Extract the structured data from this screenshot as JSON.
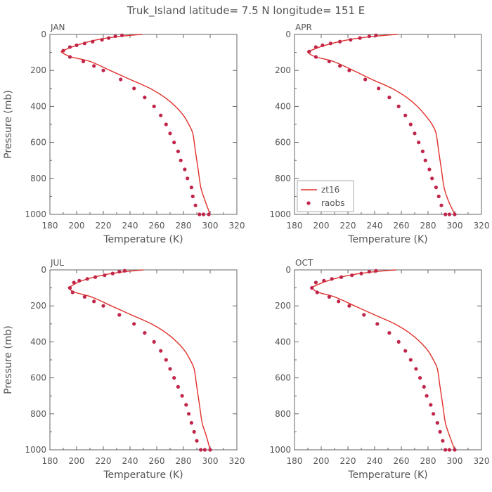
{
  "title": "Truk_Island  latitude= 7.5 N longitude= 151 E",
  "chart_data": [
    {
      "type": "line",
      "panel_label": "JAN",
      "xlabel": "Temperature (K)",
      "ylabel": "Pressure (mb)",
      "xlim": [
        180,
        320
      ],
      "ylim": [
        0,
        1000
      ],
      "y_inverted": true,
      "xticks": [
        180,
        200,
        220,
        240,
        260,
        280,
        300,
        320
      ],
      "yticks": [
        0,
        200,
        400,
        600,
        800,
        1000
      ],
      "legend": null,
      "series": [
        {
          "name": "zt16",
          "style": "line",
          "color": "#e0302b",
          "x": [
            249,
            233,
            215,
            200,
            190,
            189,
            196,
            210,
            225,
            240,
            255,
            266,
            274,
            280,
            284,
            287,
            289,
            291,
            293,
            296,
            300
          ],
          "y": [
            0,
            10,
            30,
            60,
            90,
            100,
            125,
            150,
            200,
            250,
            300,
            350,
            400,
            450,
            500,
            550,
            650,
            750,
            850,
            920,
            1000
          ]
        },
        {
          "name": "raobs",
          "style": "markers",
          "color": "#c0254a",
          "x": [
            234,
            229,
            224,
            219,
            212,
            206,
            200,
            195,
            190,
            195,
            205,
            213,
            220,
            233,
            243,
            251,
            258,
            263,
            267,
            270,
            273,
            276,
            278,
            281,
            283,
            286,
            287,
            289,
            292,
            295,
            299
          ],
          "y": [
            5,
            10,
            20,
            30,
            40,
            50,
            60,
            70,
            90,
            125,
            150,
            175,
            200,
            250,
            300,
            350,
            400,
            450,
            500,
            550,
            600,
            650,
            700,
            750,
            800,
            850,
            900,
            950,
            1000,
            1000,
            1000
          ]
        }
      ]
    },
    {
      "type": "line",
      "panel_label": "APR",
      "xlabel": "Temperature (K)",
      "ylabel": "",
      "xlim": [
        180,
        320
      ],
      "ylim": [
        0,
        1000
      ],
      "y_inverted": true,
      "xticks": [
        180,
        200,
        220,
        240,
        260,
        280,
        300,
        320
      ],
      "yticks": [
        0,
        200,
        400,
        600,
        800,
        1000
      ],
      "legend": {
        "placement": "lower-left",
        "entries": [
          {
            "label": "zt16",
            "style": "line",
            "color": "#e0302b"
          },
          {
            "label": "raobs",
            "style": "marker",
            "color": "#c0254a"
          }
        ]
      },
      "series": [
        {
          "name": "zt16",
          "style": "line",
          "color": "#e0302b",
          "x": [
            257,
            240,
            220,
            203,
            192,
            190,
            196,
            209,
            224,
            238,
            253,
            264,
            272,
            278,
            283,
            286,
            288,
            290,
            292,
            295,
            300
          ],
          "y": [
            0,
            10,
            30,
            60,
            90,
            100,
            125,
            150,
            200,
            250,
            300,
            350,
            400,
            450,
            500,
            550,
            650,
            750,
            850,
            920,
            1000
          ]
        },
        {
          "name": "raobs",
          "style": "markers",
          "color": "#c0254a",
          "x": [
            241,
            236,
            229,
            222,
            214,
            207,
            201,
            196,
            191,
            196,
            206,
            214,
            221,
            233,
            243,
            251,
            258,
            263,
            267,
            270,
            273,
            276,
            278,
            281,
            283,
            286,
            288,
            290,
            293,
            296,
            300
          ],
          "y": [
            5,
            10,
            20,
            30,
            40,
            50,
            60,
            70,
            95,
            125,
            150,
            175,
            200,
            250,
            300,
            350,
            400,
            450,
            500,
            550,
            600,
            650,
            700,
            750,
            800,
            850,
            900,
            950,
            1000,
            1000,
            1000
          ]
        }
      ]
    },
    {
      "type": "line",
      "panel_label": "JUL",
      "xlabel": "Temperature (K)",
      "ylabel": "Pressure (mb)",
      "xlim": [
        180,
        320
      ],
      "ylim": [
        0,
        1000
      ],
      "y_inverted": true,
      "xticks": [
        180,
        200,
        220,
        240,
        260,
        280,
        300,
        320
      ],
      "yticks": [
        0,
        200,
        400,
        600,
        800,
        1000
      ],
      "legend": null,
      "series": [
        {
          "name": "zt16",
          "style": "line",
          "color": "#e0302b",
          "x": [
            250,
            236,
            219,
            204,
            196,
            194,
            199,
            211,
            226,
            241,
            256,
            267,
            275,
            281,
            285,
            288,
            290,
            292,
            294,
            297,
            300
          ],
          "y": [
            0,
            10,
            30,
            60,
            90,
            100,
            125,
            150,
            200,
            250,
            300,
            350,
            400,
            450,
            500,
            550,
            650,
            750,
            850,
            920,
            1000
          ]
        },
        {
          "name": "raobs",
          "style": "markers",
          "color": "#c0254a",
          "x": [
            236,
            232,
            227,
            221,
            214,
            208,
            202,
            198,
            195,
            197,
            206,
            213,
            220,
            232,
            243,
            251,
            258,
            263,
            267,
            270,
            273,
            276,
            279,
            282,
            284,
            286,
            288,
            290,
            293,
            296,
            300
          ],
          "y": [
            5,
            10,
            20,
            30,
            40,
            50,
            60,
            70,
            100,
            125,
            150,
            175,
            200,
            250,
            300,
            350,
            400,
            450,
            500,
            550,
            600,
            650,
            700,
            750,
            800,
            850,
            900,
            950,
            1000,
            1000,
            1000
          ]
        }
      ]
    },
    {
      "type": "line",
      "panel_label": "OCT",
      "xlabel": "Temperature (K)",
      "ylabel": "",
      "xlim": [
        180,
        320
      ],
      "ylim": [
        0,
        1000
      ],
      "y_inverted": true,
      "xticks": [
        180,
        200,
        220,
        240,
        260,
        280,
        300,
        320
      ],
      "yticks": [
        0,
        200,
        400,
        600,
        800,
        1000
      ],
      "legend": null,
      "series": [
        {
          "name": "zt16",
          "style": "line",
          "color": "#e0302b",
          "x": [
            256,
            240,
            221,
            205,
            195,
            193,
            198,
            210,
            225,
            240,
            255,
            266,
            274,
            280,
            284,
            287,
            289,
            291,
            293,
            296,
            300
          ],
          "y": [
            0,
            10,
            30,
            60,
            90,
            100,
            125,
            150,
            200,
            250,
            300,
            350,
            400,
            450,
            500,
            550,
            650,
            750,
            850,
            920,
            1000
          ]
        },
        {
          "name": "raobs",
          "style": "markers",
          "color": "#c0254a",
          "x": [
            241,
            236,
            230,
            223,
            215,
            208,
            202,
            196,
            193,
            197,
            206,
            213,
            221,
            232,
            242,
            251,
            258,
            263,
            267,
            271,
            274,
            277,
            279,
            282,
            284,
            287,
            289,
            291,
            293,
            296,
            300
          ],
          "y": [
            5,
            10,
            20,
            30,
            40,
            50,
            60,
            70,
            100,
            125,
            150,
            175,
            200,
            250,
            300,
            350,
            400,
            450,
            500,
            550,
            600,
            650,
            700,
            750,
            800,
            850,
            900,
            950,
            1000,
            1000,
            1000
          ]
        }
      ]
    }
  ]
}
